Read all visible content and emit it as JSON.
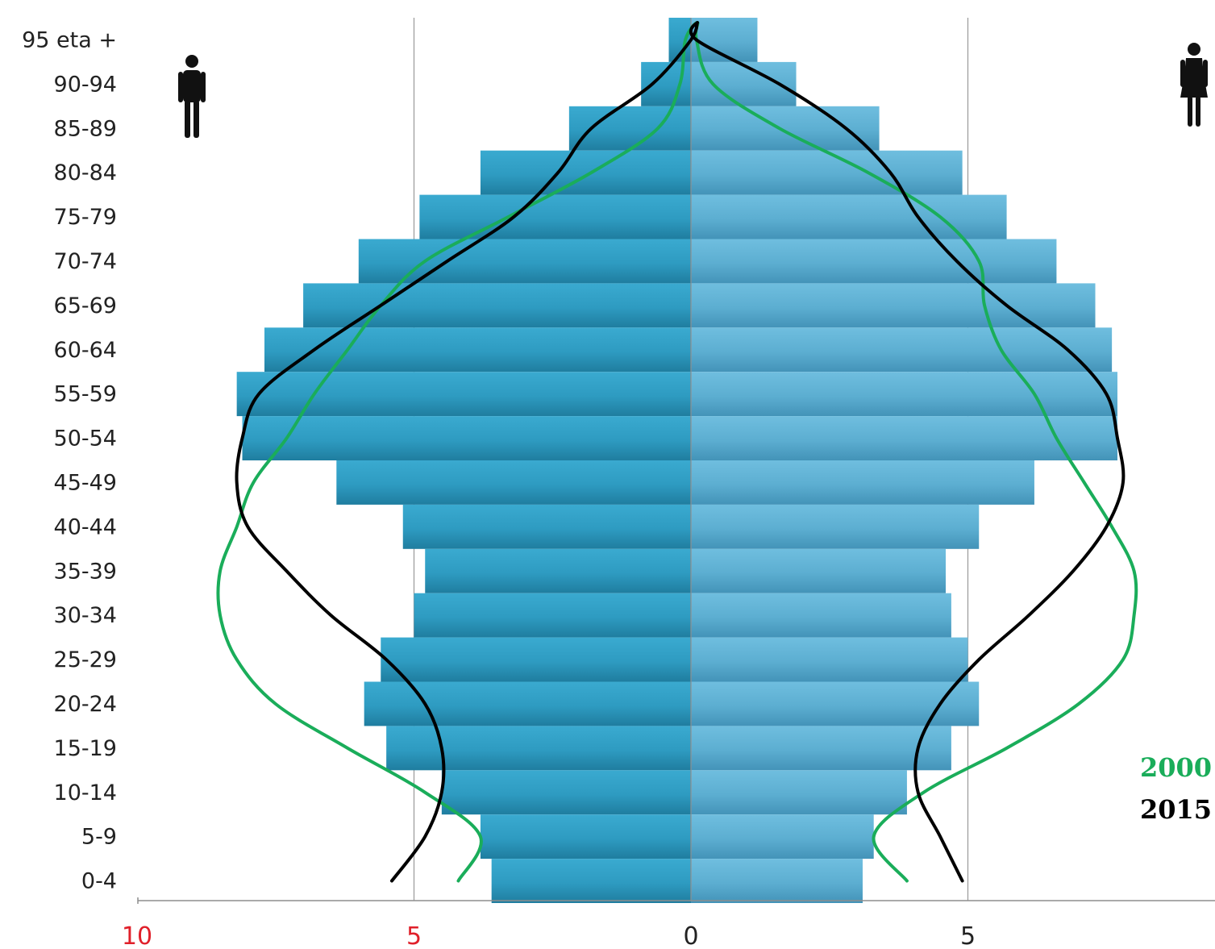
{
  "chart_data": {
    "type": "bar",
    "subtype": "population-pyramid",
    "title": "",
    "xlabel": "",
    "ylabel": "",
    "categories": [
      "95 eta +",
      "90-94",
      "85-89",
      "80-84",
      "75-79",
      "70-74",
      "65-69",
      "60-64",
      "55-59",
      "50-54",
      "45-49",
      "40-44",
      "35-39",
      "30-34",
      "25-29",
      "20-24",
      "15-19",
      "10-14",
      "5-9",
      "0-4"
    ],
    "series": [
      {
        "side": "left",
        "values": [
          0.4,
          0.9,
          2.2,
          3.8,
          4.9,
          6.0,
          7.0,
          7.7,
          8.2,
          8.1,
          6.4,
          5.2,
          4.8,
          5.0,
          5.6,
          5.9,
          5.5,
          4.5,
          3.8,
          3.6
        ]
      },
      {
        "side": "right",
        "values": [
          1.2,
          1.9,
          3.4,
          4.9,
          5.7,
          6.6,
          7.3,
          7.6,
          7.7,
          7.7,
          6.2,
          5.2,
          4.6,
          4.7,
          5.0,
          5.2,
          4.7,
          3.9,
          3.3,
          3.1
        ]
      }
    ],
    "overlay_lines": [
      {
        "name": "2000",
        "color": "#1aad5a",
        "left_values": [
          0.1,
          0.2,
          0.6,
          1.8,
          3.3,
          4.8,
          5.6,
          6.2,
          6.8,
          7.3,
          7.9,
          8.2,
          8.5,
          8.5,
          8.2,
          7.5,
          6.2,
          4.8,
          3.8,
          4.2
        ],
        "right_values": [
          0.1,
          0.4,
          1.6,
          3.2,
          4.5,
          5.2,
          5.3,
          5.6,
          6.2,
          6.6,
          7.1,
          7.6,
          8.0,
          8.0,
          7.8,
          7.0,
          5.7,
          4.2,
          3.3,
          3.9
        ]
      },
      {
        "name": "2015",
        "color": "#000000",
        "left_values": [
          0.0,
          0.7,
          1.8,
          2.4,
          3.2,
          4.4,
          5.6,
          6.8,
          7.8,
          8.1,
          8.2,
          8.0,
          7.3,
          6.5,
          5.5,
          4.8,
          4.5,
          4.5,
          4.8,
          5.4
        ],
        "right_values": [
          0.1,
          1.6,
          2.8,
          3.6,
          4.1,
          4.8,
          5.7,
          6.8,
          7.5,
          7.7,
          7.8,
          7.5,
          6.9,
          6.1,
          5.2,
          4.5,
          4.1,
          4.1,
          4.5,
          4.9
        ]
      }
    ],
    "x_ticks": [
      {
        "label": "10",
        "value": -10,
        "color": "#e0202a"
      },
      {
        "label": "5",
        "value": -5,
        "color": "#e0202a"
      },
      {
        "label": "0",
        "value": 0,
        "color": "#222222"
      },
      {
        "label": "5",
        "value": 5,
        "color": "#222222"
      }
    ],
    "xlim": [
      -10,
      9.4
    ],
    "grid": "vertical lines at -5, 0 and 5",
    "bar_colors": {
      "left": "#2e9bc1",
      "left_dark": "#1f7d9f",
      "right": "#63b4d6",
      "right_dark": "#4a9cc0"
    },
    "legend": {
      "placement": "bottom-right",
      "items": [
        "2000",
        "2015"
      ]
    },
    "icons": {
      "left": "male-icon",
      "right": "female-icon"
    }
  }
}
